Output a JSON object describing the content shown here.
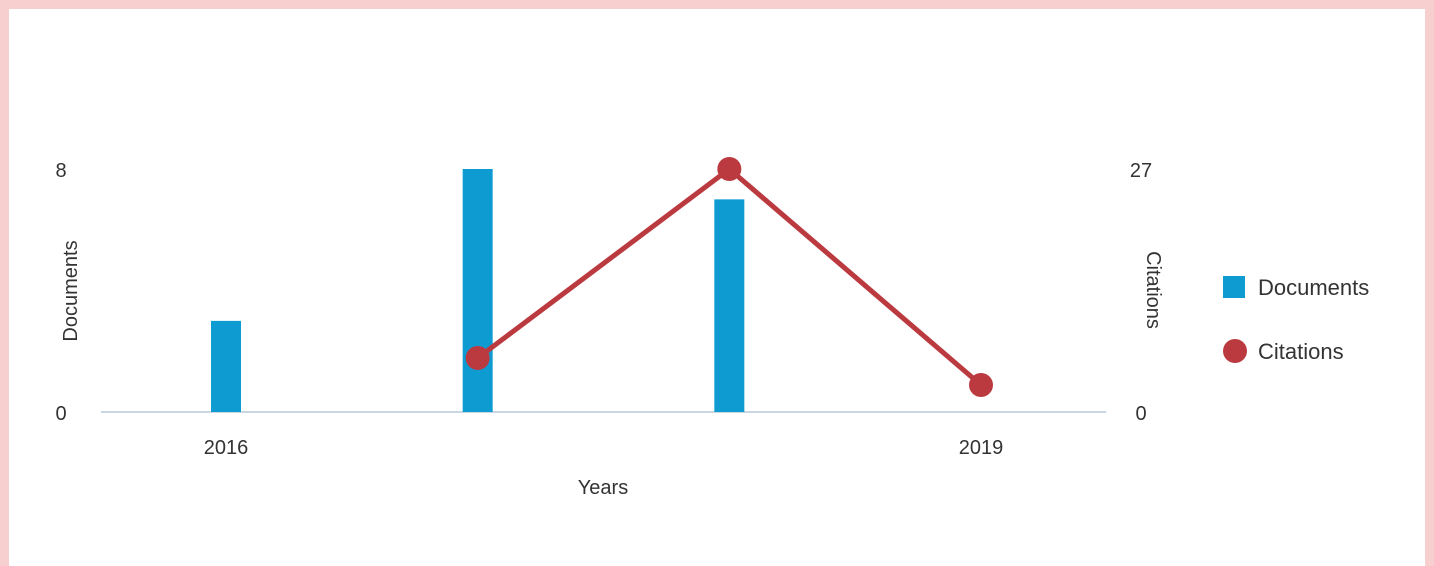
{
  "chart_data": {
    "type": "bar",
    "x": [
      2016,
      2017,
      2018,
      2019
    ],
    "tick_labels": [
      "2016",
      "2019"
    ],
    "xlabel": "Years",
    "ylabel_left": "Documents",
    "ylabel_right": "Citations",
    "ylim_left": [
      0,
      8
    ],
    "ylim_right": [
      0,
      27
    ],
    "yticks_left": [
      "0",
      "8"
    ],
    "yticks_right": [
      "0",
      "27"
    ],
    "series": [
      {
        "name": "Documents",
        "type": "bar",
        "axis": "left",
        "values": [
          3,
          8,
          7,
          0
        ],
        "color": "#0e9bd2"
      },
      {
        "name": "Citations",
        "type": "line",
        "axis": "right",
        "values": [
          null,
          6,
          27,
          3
        ],
        "color": "#bb3a3f"
      }
    ],
    "legend_position": "right",
    "grid": false
  }
}
